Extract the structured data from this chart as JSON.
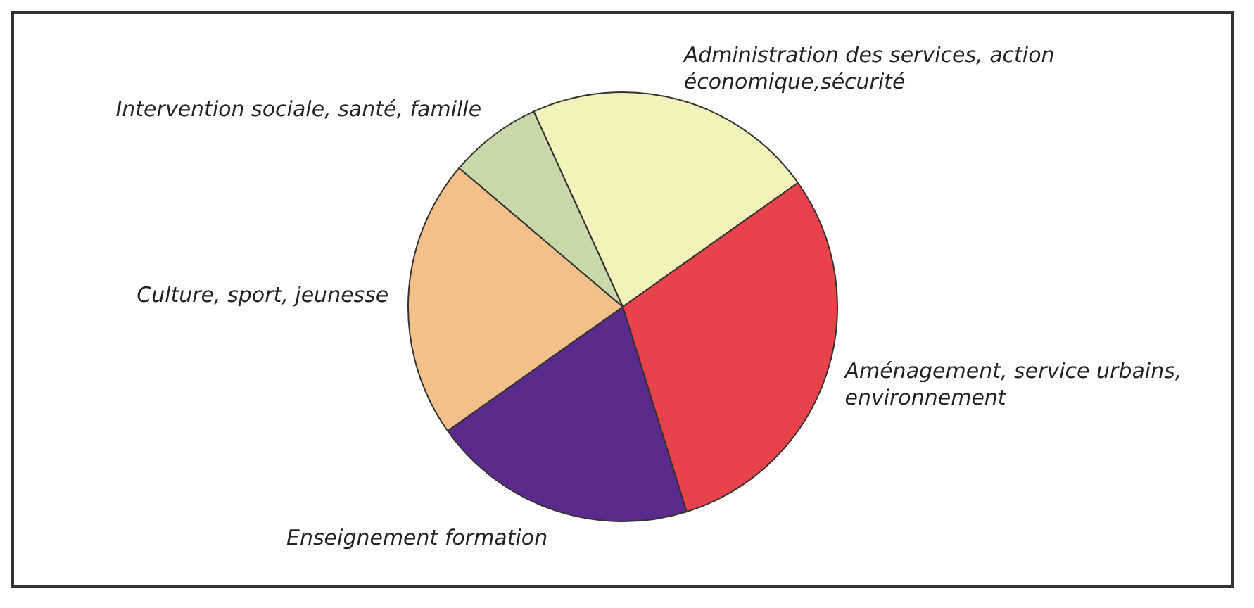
{
  "chart_data": {
    "type": "pie",
    "categories": [
      "Administration des services, action économique,sécurité",
      "Aménagement, service urbains, environnement",
      "Enseignement formation",
      "Culture, sport, jeunesse",
      "Intervention sociale, santé, famille"
    ],
    "values": [
      22,
      30,
      20,
      21,
      7
    ],
    "colors": [
      "#f3f2b8",
      "#e8424a",
      "#5a2a8c",
      "#f4c08a",
      "#c8d8a8"
    ],
    "legend": false
  }
}
